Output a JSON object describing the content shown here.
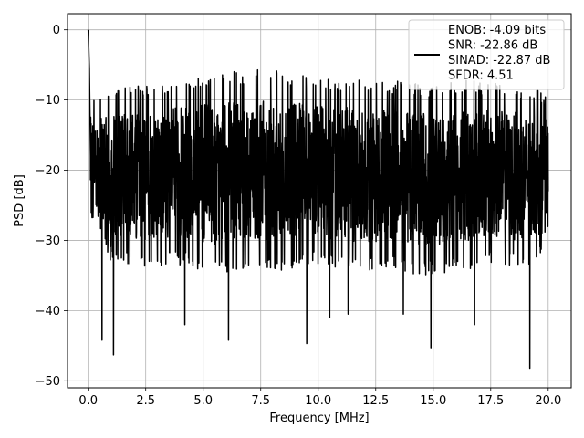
{
  "chart_data": {
    "type": "line",
    "xlabel": "Frequency [MHz]",
    "ylabel": "PSD [dB]",
    "xlim": [
      -0.9,
      21.0
    ],
    "ylim": [
      -51.0,
      2.3
    ],
    "xticks": [
      0.0,
      2.5,
      5.0,
      7.5,
      10.0,
      12.5,
      15.0,
      17.5,
      20.0
    ],
    "xtick_labels": [
      "0.0",
      "2.5",
      "5.0",
      "7.5",
      "10.0",
      "12.5",
      "15.0",
      "17.5",
      "20.0"
    ],
    "yticks": [
      0,
      -10,
      -20,
      -30,
      -40,
      -50
    ],
    "ytick_labels": [
      "0",
      "−10",
      "−20",
      "−30",
      "−40",
      "−50"
    ],
    "grid": true,
    "legend_position": "top-right",
    "line_color": "#000000",
    "series": [
      {
        "legend_lines": [
          "ENOB: -4.09 bits",
          "SNR: -22.86 dB",
          "SINAD: -22.87 dB",
          "SFDR: 4.51"
        ],
        "x_range": [
          0.0,
          20.0
        ],
        "peak_points": [
          {
            "x": 0.0,
            "y": 0.0
          },
          {
            "x": 0.05,
            "y": -5.5
          },
          {
            "x": 0.1,
            "y": -18.0
          },
          {
            "x": 0.6,
            "y": -44.2
          },
          {
            "x": 1.1,
            "y": -46.3
          },
          {
            "x": 4.2,
            "y": -42.0
          },
          {
            "x": 6.1,
            "y": -44.2
          },
          {
            "x": 9.5,
            "y": -44.7
          },
          {
            "x": 10.5,
            "y": -41.0
          },
          {
            "x": 11.3,
            "y": -40.5
          },
          {
            "x": 13.7,
            "y": -40.5
          },
          {
            "x": 14.9,
            "y": -45.3
          },
          {
            "x": 16.8,
            "y": -42.0
          },
          {
            "x": 19.2,
            "y": -48.2
          }
        ],
        "upper_envelope": [
          [
            0.15,
            -9.5
          ],
          [
            1.0,
            -8.5
          ],
          [
            2.0,
            -8.0
          ],
          [
            3.0,
            -7.5
          ],
          [
            4.0,
            -7.0
          ],
          [
            5.0,
            -6.5
          ],
          [
            6.0,
            -6.0
          ],
          [
            7.0,
            -5.8
          ],
          [
            7.8,
            -5.1
          ],
          [
            8.5,
            -6.0
          ],
          [
            9.5,
            -6.5
          ],
          [
            10.5,
            -7.0
          ],
          [
            11.5,
            -6.8
          ],
          [
            12.5,
            -7.5
          ],
          [
            13.5,
            -7.2
          ],
          [
            14.5,
            -7.8
          ],
          [
            15.5,
            -7.5
          ],
          [
            16.5,
            -7.0
          ],
          [
            17.5,
            -7.5
          ],
          [
            18.5,
            -7.8
          ],
          [
            19.5,
            -8.5
          ],
          [
            20.0,
            -9.5
          ]
        ],
        "lower_envelope": [
          [
            0.15,
            -28.0
          ],
          [
            1.0,
            -33.0
          ],
          [
            2.5,
            -34.0
          ],
          [
            4.0,
            -33.5
          ],
          [
            5.5,
            -35.0
          ],
          [
            7.0,
            -34.0
          ],
          [
            8.5,
            -34.5
          ],
          [
            10.0,
            -33.5
          ],
          [
            11.5,
            -34.5
          ],
          [
            13.0,
            -34.0
          ],
          [
            14.5,
            -35.0
          ],
          [
            16.0,
            -34.5
          ],
          [
            17.5,
            -33.5
          ],
          [
            19.0,
            -34.0
          ],
          [
            20.0,
            -32.0
          ]
        ]
      }
    ]
  }
}
